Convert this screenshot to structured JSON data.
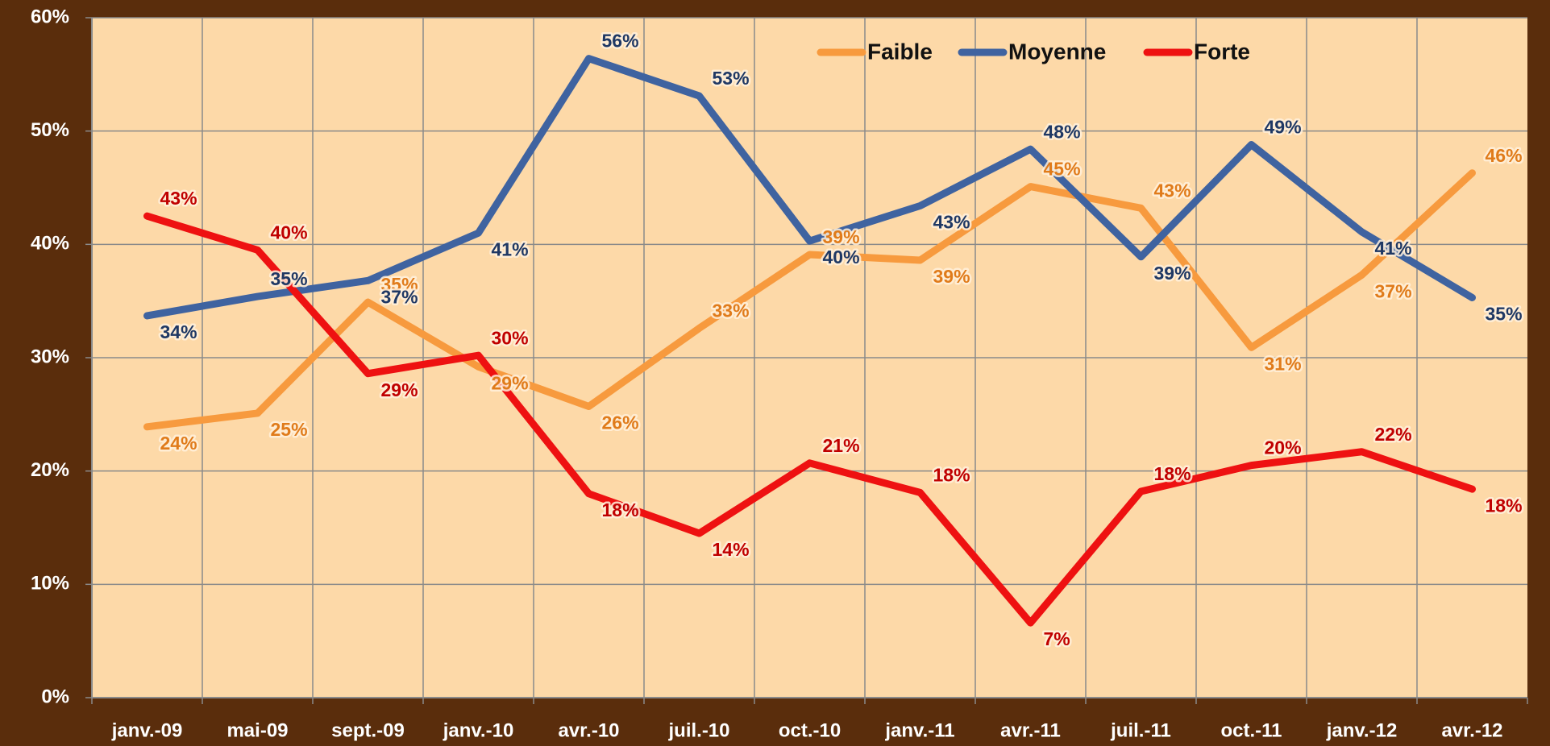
{
  "chart_data": {
    "type": "line",
    "categories": [
      "janv.-09",
      "mai-09",
      "sept.-09",
      "janv.-10",
      "avr.-10",
      "juil.-10",
      "oct.-10",
      "janv.-11",
      "avr.-11",
      "juil.-11",
      "oct.-11",
      "janv.-12",
      "avr.-12"
    ],
    "series": [
      {
        "name": "Faible",
        "color": "#f79a3e",
        "label_color": "#e07b1a",
        "values": [
          23.9,
          25.1,
          34.9,
          29.2,
          25.7,
          32.6,
          39.1,
          38.6,
          45.1,
          43.2,
          30.9,
          37.3,
          46.3
        ],
        "value_labels": [
          "24%",
          "25%",
          "35%",
          "29%",
          "26%",
          "33%",
          "39%",
          "39%",
          "45%",
          "43%",
          "31%",
          "37%",
          "46%"
        ]
      },
      {
        "name": "Moyenne",
        "color": "#3f63a0",
        "label_color": "#1f3864",
        "values": [
          33.7,
          35.4,
          36.8,
          41.0,
          56.4,
          53.1,
          40.3,
          43.4,
          48.4,
          38.9,
          48.8,
          41.1,
          35.3
        ],
        "value_labels": [
          "34%",
          "35%",
          "37%",
          "41%",
          "56%",
          "53%",
          "40%",
          "43%",
          "48%",
          "39%",
          "49%",
          "41%",
          "35%"
        ]
      },
      {
        "name": "Forte",
        "color": "#ee1111",
        "label_color": "#c00000",
        "values": [
          42.5,
          39.5,
          28.6,
          30.2,
          18.0,
          14.5,
          20.7,
          18.1,
          6.6,
          18.2,
          20.5,
          21.7,
          18.4
        ],
        "value_labels": [
          "43%",
          "40%",
          "29%",
          "30%",
          "18%",
          "14%",
          "21%",
          "18%",
          "7%",
          "18%",
          "20%",
          "22%",
          "18%"
        ]
      }
    ],
    "ylim": [
      0,
      60
    ],
    "yticks": [
      {
        "value": 0,
        "label": "0%"
      },
      {
        "value": 10,
        "label": "10%"
      },
      {
        "value": 20,
        "label": "20%"
      },
      {
        "value": 30,
        "label": "30%"
      },
      {
        "value": 40,
        "label": "40%"
      },
      {
        "value": 50,
        "label": "50%"
      },
      {
        "value": 60,
        "label": "60%"
      }
    ],
    "grid": true,
    "legend": "top"
  }
}
